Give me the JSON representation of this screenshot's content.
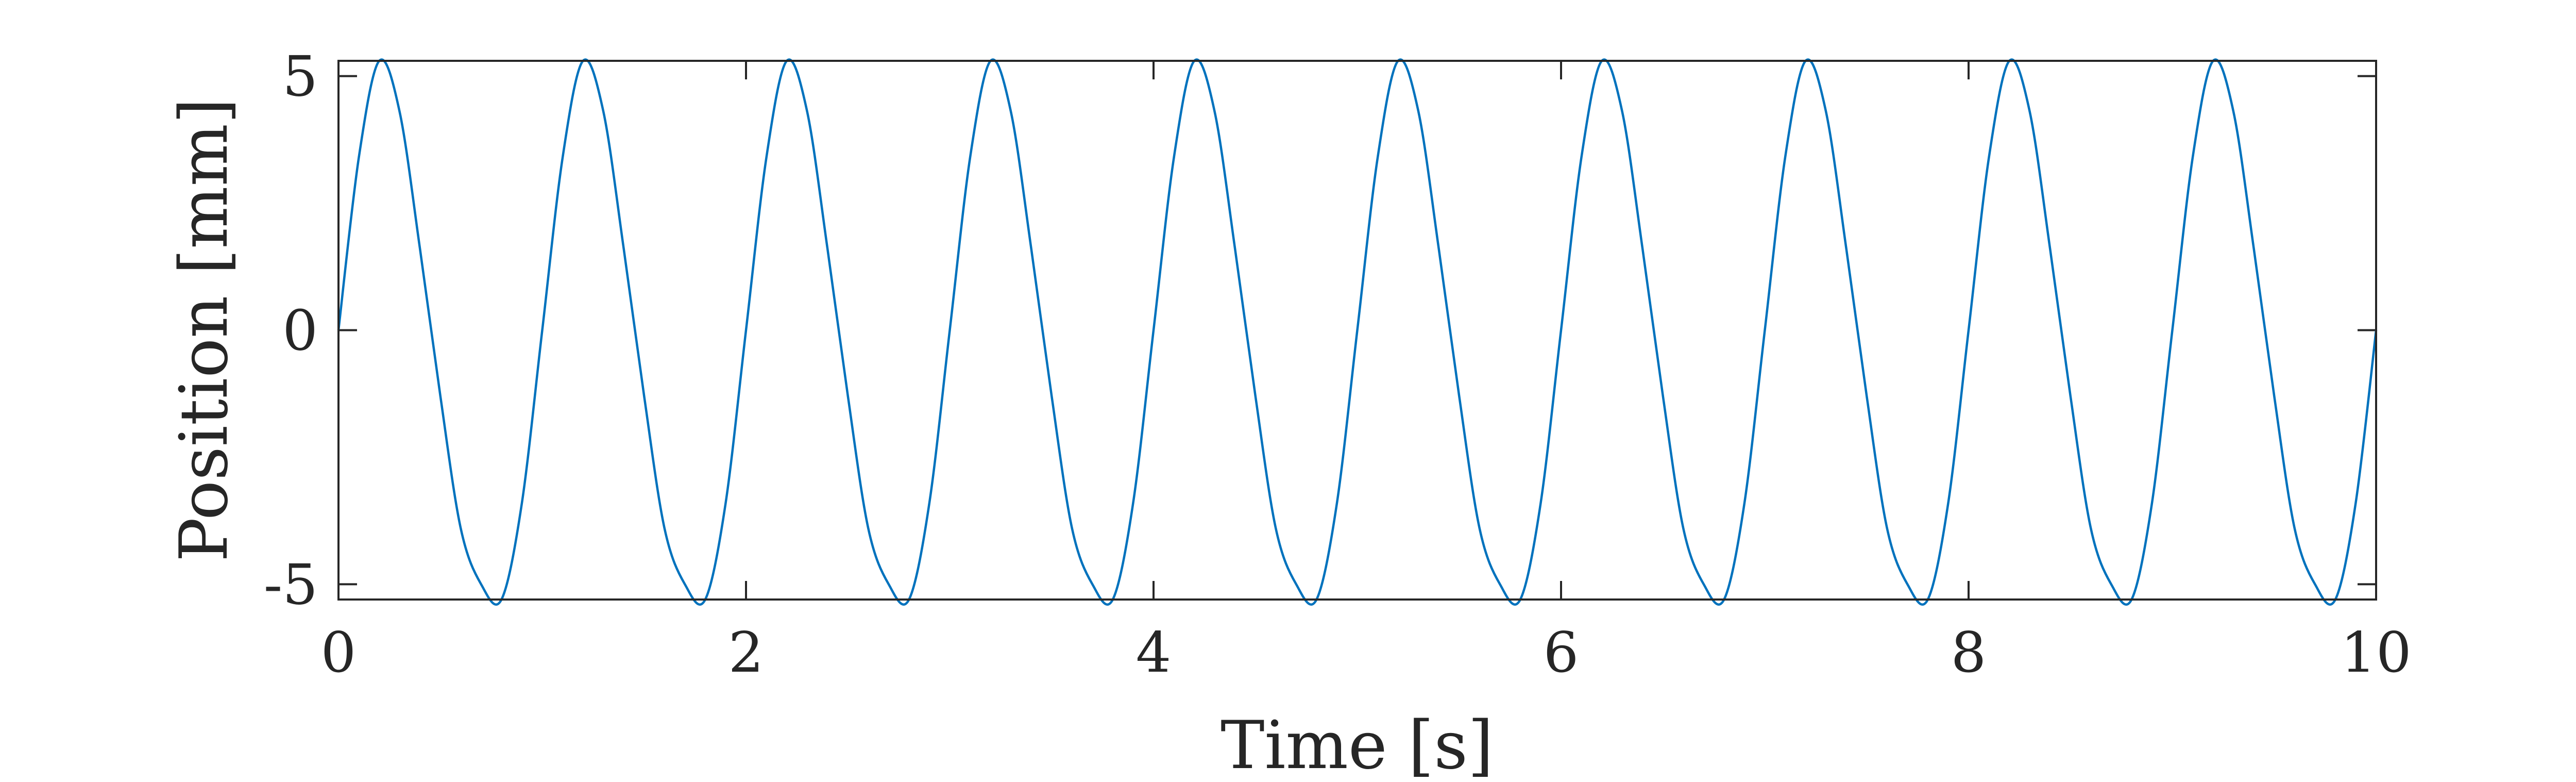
{
  "chart_data": {
    "type": "line",
    "title": "",
    "xlabel": "Time [s]",
    "ylabel": "Position [mm]",
    "xlim": [
      0,
      10
    ],
    "ylim": [
      -5.3,
      5.3
    ],
    "xticks": [
      0,
      2,
      4,
      6,
      8,
      10
    ],
    "xtick_labels": [
      "0",
      "2",
      "4",
      "6",
      "8",
      "10"
    ],
    "yticks": [
      -5,
      0,
      5
    ],
    "ytick_labels": [
      "-5",
      "0",
      "5"
    ],
    "grid": false,
    "legend": "none",
    "line_color": "#0072BD",
    "axis_color": "#262626",
    "series": [
      {
        "x": [
          0,
          0.1,
          0.2,
          0.3,
          0.4,
          0.5,
          0.6,
          0.7,
          0.8,
          0.9,
          1.0,
          1.1,
          1.2,
          1.3,
          1.4,
          1.5,
          1.6,
          1.7,
          1.8,
          1.9,
          2.0,
          2.1,
          2.2,
          2.3,
          2.4,
          2.5,
          2.6,
          2.7,
          2.8,
          2.9,
          3.0,
          3.1,
          3.2,
          3.3,
          3.4,
          3.5,
          3.6,
          3.7,
          3.8,
          3.9,
          4.0,
          4.1,
          4.2,
          4.3,
          4.4,
          4.5,
          4.6,
          4.7,
          4.8,
          4.9,
          5.0,
          5.1,
          5.2,
          5.3,
          5.4,
          5.5,
          5.6,
          5.7,
          5.8,
          5.9,
          6.0,
          6.1,
          6.2,
          6.3,
          6.4,
          6.5,
          6.6,
          6.7,
          6.8,
          6.9,
          7.0,
          7.1,
          7.2,
          7.3,
          7.4,
          7.5,
          7.6,
          7.7,
          7.8,
          7.9,
          8.0,
          8.1,
          8.2,
          8.3,
          8.4,
          8.5,
          8.6,
          8.7,
          8.8,
          8.9,
          9.0,
          9.1,
          9.2,
          9.3,
          9.4,
          9.5,
          9.6,
          9.7,
          9.8,
          9.9,
          10.0
        ],
        "y": [
          0.0,
          3.4,
          5.3,
          4.3,
          1.6,
          -1.3,
          -3.9,
          -5.0,
          -5.3,
          -3.4,
          0.0,
          3.4,
          5.3,
          4.3,
          1.6,
          -1.3,
          -3.9,
          -5.0,
          -5.3,
          -3.4,
          0.0,
          3.4,
          5.3,
          4.3,
          1.6,
          -1.3,
          -3.9,
          -5.0,
          -5.3,
          -3.4,
          0.0,
          3.4,
          5.3,
          4.3,
          1.6,
          -1.3,
          -3.9,
          -5.0,
          -5.3,
          -3.4,
          0.0,
          3.4,
          5.3,
          4.3,
          1.6,
          -1.3,
          -3.9,
          -5.0,
          -5.3,
          -3.4,
          0.0,
          3.4,
          5.3,
          4.3,
          1.6,
          -1.3,
          -3.9,
          -5.0,
          -5.3,
          -3.4,
          0.0,
          3.4,
          5.3,
          4.3,
          1.6,
          -1.3,
          -3.9,
          -5.0,
          -5.3,
          -3.4,
          0.0,
          3.4,
          5.3,
          4.3,
          1.6,
          -1.3,
          -3.9,
          -5.0,
          -5.3,
          -3.4,
          0.0,
          3.4,
          5.3,
          4.3,
          1.6,
          -1.3,
          -3.9,
          -5.0,
          -5.3,
          -3.4,
          0.0,
          3.4,
          5.3,
          4.3,
          1.6,
          -1.3,
          -3.9,
          -5.0,
          -5.3,
          -3.4,
          0.0
        ]
      }
    ]
  }
}
